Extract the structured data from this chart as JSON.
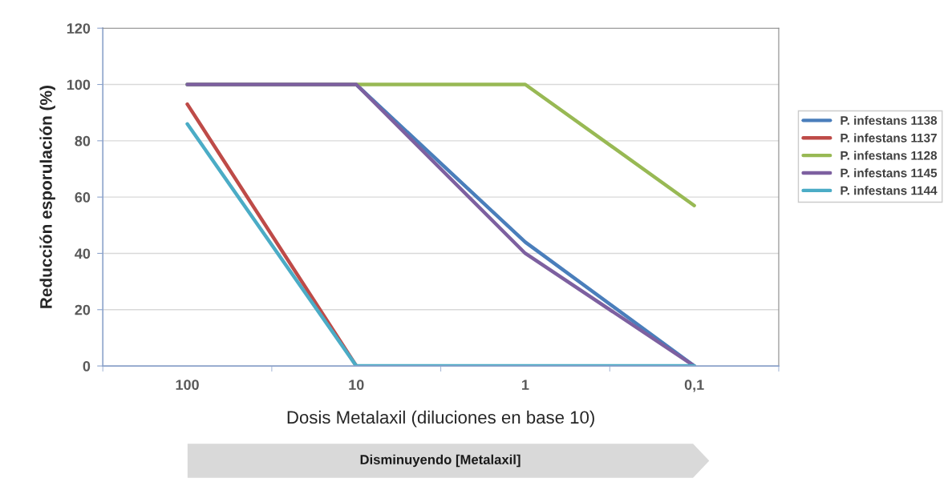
{
  "chart_data": {
    "type": "line",
    "xlabel": "Dosis Metalaxil (diluciones en base 10)",
    "ylabel": "Reducción esporulación (%)",
    "annotations": [
      "Disminuyendo [Metalaxil]"
    ],
    "categories": [
      "100",
      "10",
      "1",
      "0,1"
    ],
    "ylim": [
      0,
      120
    ],
    "yticks": [
      0,
      20,
      40,
      60,
      80,
      100,
      120
    ],
    "grid": "y",
    "legend": "right",
    "marker": "none",
    "line_style": "solid",
    "series": [
      {
        "name": "P. infestans 1138",
        "color": "#4a7ebb",
        "values": [
          100,
          100,
          44,
          0
        ]
      },
      {
        "name": "P. infestans 1137",
        "color": "#be4b48",
        "values": [
          93,
          0,
          null,
          null
        ]
      },
      {
        "name": "P. infestans 1128",
        "color": "#98b954",
        "values": [
          100,
          100,
          100,
          57
        ]
      },
      {
        "name": "P. infestans 1145",
        "color": "#7d60a0",
        "values": [
          100,
          100,
          40,
          0
        ]
      },
      {
        "name": "P. infestans 1144",
        "color": "#4bacc6",
        "values": [
          86,
          0,
          0,
          0
        ]
      }
    ]
  }
}
